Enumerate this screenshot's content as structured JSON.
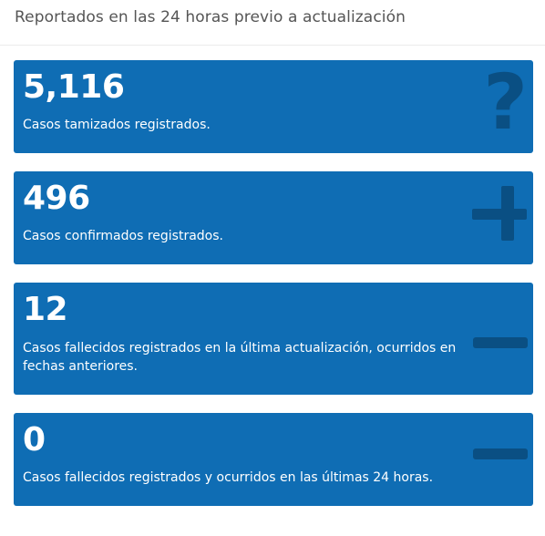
{
  "header": {
    "title": "Reportados en las 24 horas previo a actualización"
  },
  "colors": {
    "card_bg": "#0f6db4",
    "icon": "#0a4f83",
    "header_text": "#555555"
  },
  "cards": [
    {
      "number": "5,116",
      "description": "Casos tamizados registrados.",
      "icon": "question-icon"
    },
    {
      "number": "496",
      "description": "Casos confirmados registrados.",
      "icon": "plus-icon"
    },
    {
      "number": "12",
      "description": "Casos fallecidos registrados en la última actualización, ocurridos en fechas anteriores.",
      "icon": "minus-icon"
    },
    {
      "number": "0",
      "description": "Casos fallecidos registrados y ocurridos en las últimas 24 horas.",
      "icon": "minus-icon"
    }
  ]
}
